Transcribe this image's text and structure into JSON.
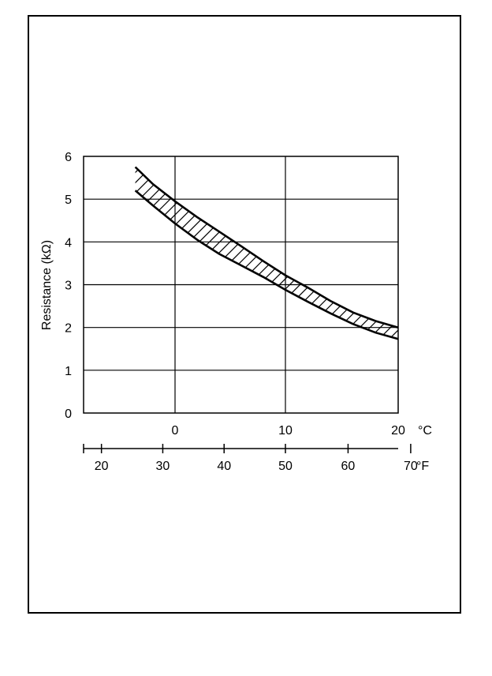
{
  "chart_data": {
    "type": "area",
    "title": "",
    "ylabel": "Resistance (kΩ)",
    "ylim": [
      0,
      6
    ],
    "yticks": [
      "0",
      "1",
      "2",
      "3",
      "4",
      "5",
      "6"
    ],
    "xlim": [
      -8.3,
      20
    ],
    "x_unit": "°C",
    "xticks": [
      {
        "value": 0,
        "label": "0"
      },
      {
        "value": 10,
        "label": "10"
      },
      {
        "value": 20,
        "label": "20"
      }
    ],
    "x2_unit": "°F",
    "x2ticks": [
      {
        "value": 20,
        "label": "20"
      },
      {
        "value": 30,
        "label": "30"
      },
      {
        "value": 40,
        "label": "40"
      },
      {
        "value": 50,
        "label": "50"
      },
      {
        "value": 60,
        "label": "60"
      },
      {
        "value": 70,
        "label": "70"
      }
    ],
    "grid": true,
    "series": [
      {
        "x": [
          -3.6,
          -2,
          0,
          2,
          4,
          6,
          8,
          10,
          12,
          14,
          16,
          18,
          20
        ],
        "upper": [
          5.75,
          5.35,
          4.95,
          4.58,
          4.24,
          3.9,
          3.55,
          3.22,
          2.93,
          2.62,
          2.35,
          2.15,
          2.0
        ],
        "lower": [
          5.2,
          4.85,
          4.43,
          4.05,
          3.72,
          3.45,
          3.18,
          2.88,
          2.6,
          2.33,
          2.08,
          1.88,
          1.73
        ]
      }
    ],
    "colors": {
      "line": "#000000",
      "background": "#ffffff"
    }
  }
}
